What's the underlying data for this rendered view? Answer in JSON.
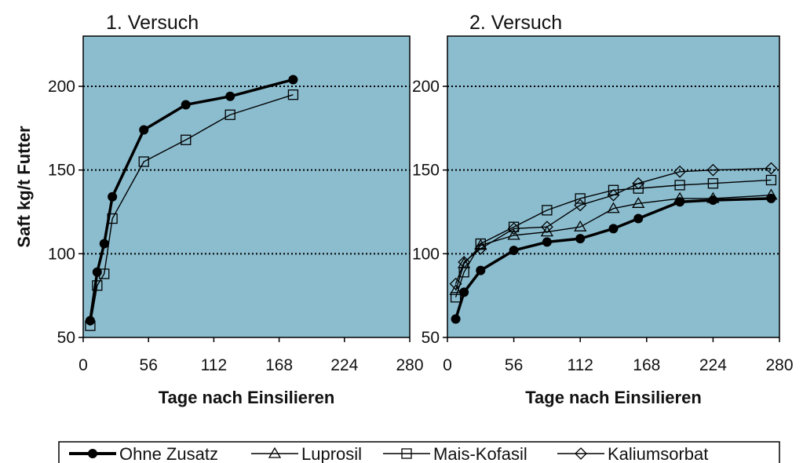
{
  "ylabel": "Saft kg/t Futter",
  "legend": [
    {
      "name": "Ohne Zusatz",
      "marker": "circle-filled",
      "thick": true
    },
    {
      "name": "Luprosil",
      "marker": "triangle-open",
      "thick": false
    },
    {
      "name": "Mais-Kofasil",
      "marker": "square-open",
      "thick": false
    },
    {
      "name": "Kaliumsorbat",
      "marker": "diamond-open",
      "thick": false
    }
  ],
  "colors": {
    "plot_bg": "#8bbdcf",
    "line": "#000000",
    "grid": "#000000"
  },
  "chart_data": [
    {
      "type": "line",
      "title": "1. Versuch",
      "xlabel": "Tage nach Einsilieren",
      "ylabel": "Saft kg/t Futter",
      "xlim": [
        0,
        280
      ],
      "ylim": [
        50,
        230
      ],
      "xticks": [
        0,
        56,
        112,
        168,
        224,
        280
      ],
      "yticks": [
        50,
        100,
        150,
        200
      ],
      "grid": "horizontal dotted",
      "series": [
        {
          "name": "Ohne Zusatz",
          "marker": "circle-filled",
          "x": [
            6,
            12,
            18,
            25,
            52,
            88,
            126,
            180
          ],
          "y": [
            60,
            89,
            106,
            134,
            174,
            189,
            194,
            204
          ]
        },
        {
          "name": "Mais-Kofasil",
          "marker": "square-open",
          "x": [
            6,
            12,
            18,
            25,
            52,
            88,
            126,
            180
          ],
          "y": [
            57,
            81,
            88,
            121,
            155,
            168,
            183,
            195
          ]
        }
      ]
    },
    {
      "type": "line",
      "title": "2. Versuch",
      "xlabel": "Tage nach Einsilieren",
      "xlim": [
        0,
        280
      ],
      "ylim": [
        50,
        230
      ],
      "xticks": [
        0,
        56,
        112,
        168,
        224,
        280
      ],
      "yticks": [
        50,
        100,
        150,
        200
      ],
      "grid": "horizontal dotted",
      "series": [
        {
          "name": "Ohne Zusatz",
          "marker": "circle-filled",
          "x": [
            7,
            14,
            28,
            56,
            84,
            112,
            140,
            161,
            196,
            224,
            273
          ],
          "y": [
            61,
            77,
            90,
            102,
            107,
            109,
            115,
            121,
            131,
            132,
            133
          ]
        },
        {
          "name": "Luprosil",
          "marker": "triangle-open",
          "x": [
            7,
            14,
            28,
            56,
            84,
            112,
            140,
            161,
            196,
            224,
            273
          ],
          "y": [
            78,
            94,
            105,
            111,
            113,
            116,
            127,
            130,
            133,
            133,
            135
          ]
        },
        {
          "name": "Mais-Kofasil",
          "marker": "square-open",
          "x": [
            7,
            14,
            28,
            56,
            84,
            112,
            140,
            161,
            196,
            224,
            273
          ],
          "y": [
            74,
            89,
            106,
            116,
            126,
            133,
            138,
            139,
            141,
            142,
            144
          ]
        },
        {
          "name": "Kaliumsorbat",
          "marker": "diamond-open",
          "x": [
            7,
            14,
            28,
            56,
            84,
            112,
            140,
            161,
            196,
            224,
            273
          ],
          "y": [
            82,
            95,
            103,
            115,
            116,
            129,
            135,
            142,
            149,
            150,
            151
          ]
        }
      ]
    }
  ]
}
